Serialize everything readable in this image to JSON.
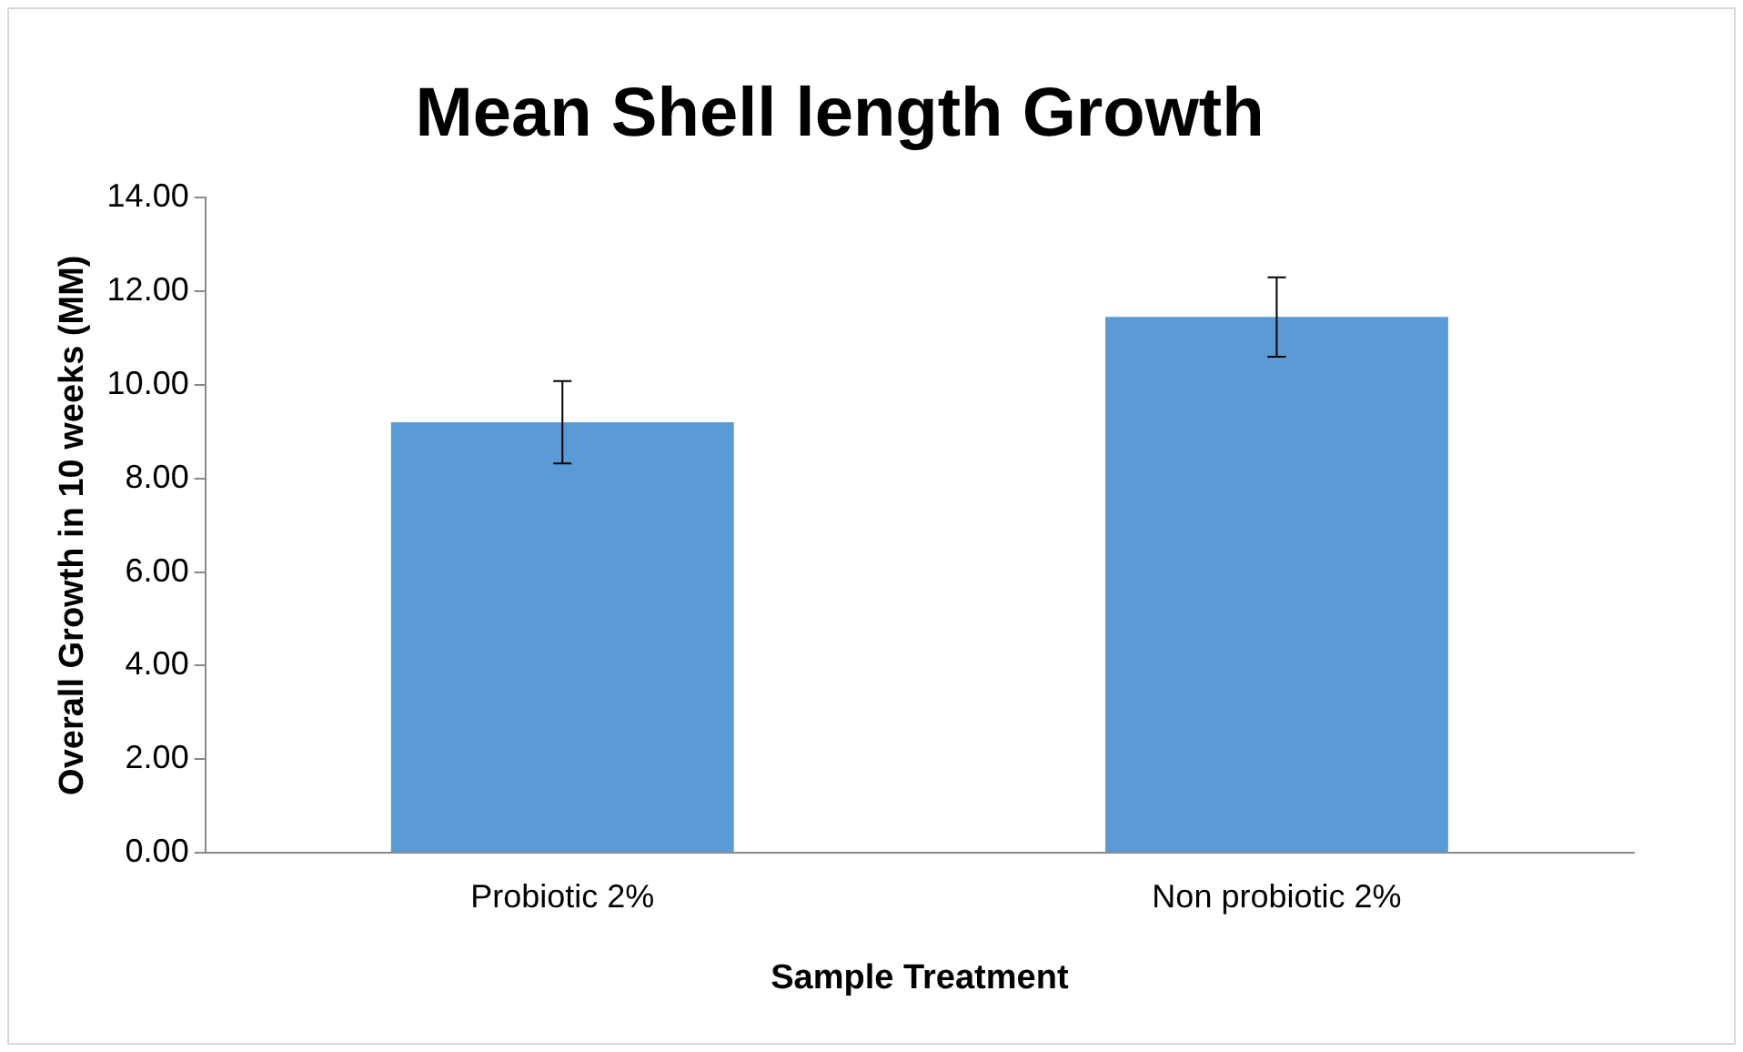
{
  "chart_data": {
    "type": "bar",
    "title": "Mean Shell length Growth",
    "xlabel": "Sample Treatment",
    "ylabel": "Overall Growth in 10 weeks (MM)",
    "categories": [
      "Probiotic 2%",
      "Non probiotic 2%"
    ],
    "values": [
      9.2,
      11.45
    ],
    "errors": [
      0.88,
      0.85
    ],
    "color": "#5b9bd5",
    "ylim": [
      0,
      14
    ],
    "yticks": [
      {
        "value": 0,
        "label": "0.00"
      },
      {
        "value": 2,
        "label": "2.00"
      },
      {
        "value": 4,
        "label": "4.00"
      },
      {
        "value": 6,
        "label": "6.00"
      },
      {
        "value": 8,
        "label": "8.00"
      },
      {
        "value": 10,
        "label": "10.00"
      },
      {
        "value": 12,
        "label": "12.00"
      },
      {
        "value": 14,
        "label": "14.00"
      }
    ],
    "grid": false,
    "legend": false
  }
}
